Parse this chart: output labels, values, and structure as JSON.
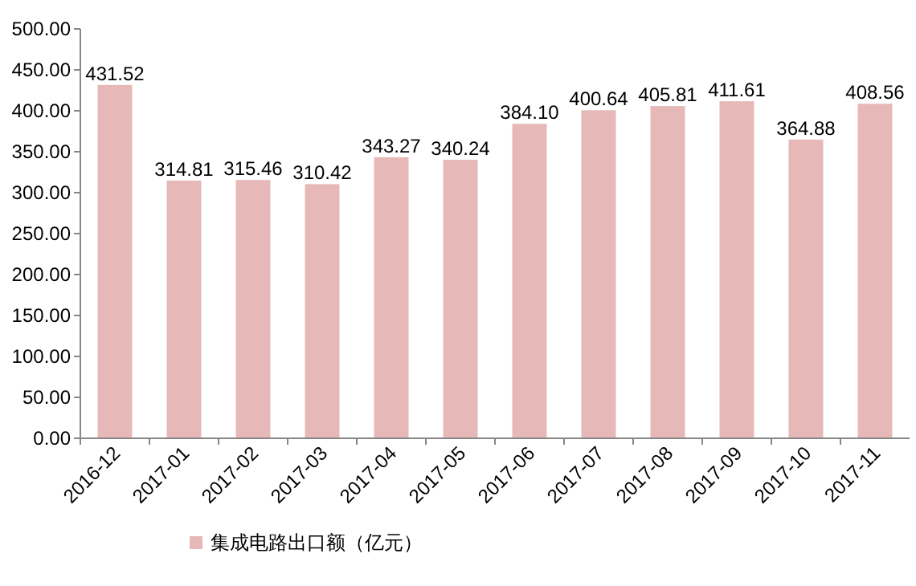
{
  "chart_data": {
    "type": "bar",
    "categories": [
      "2016-12",
      "2017-01",
      "2017-02",
      "2017-03",
      "2017-04",
      "2017-05",
      "2017-06",
      "2017-07",
      "2017-08",
      "2017-09",
      "2017-10",
      "2017-11"
    ],
    "series": [
      {
        "name": "集成电路出口额（亿元）",
        "color": "#e6b9b8",
        "values": [
          431.52,
          314.81,
          315.46,
          310.42,
          343.27,
          340.24,
          384.1,
          400.64,
          405.81,
          411.61,
          364.88,
          408.56
        ]
      }
    ],
    "value_labels": [
      "431.52",
      "314.81",
      "315.46",
      "310.42",
      "343.27",
      "340.24",
      "384.10",
      "400.64",
      "405.81",
      "411.61",
      "364.88",
      "408.56"
    ],
    "ylim": [
      0,
      500
    ],
    "yticks": [
      {
        "value": 0,
        "label": "0.00"
      },
      {
        "value": 50,
        "label": "50.00"
      },
      {
        "value": 100,
        "label": "100.00"
      },
      {
        "value": 150,
        "label": "150.00"
      },
      {
        "value": 200,
        "label": "200.00"
      },
      {
        "value": 250,
        "label": "250.00"
      },
      {
        "value": 300,
        "label": "300.00"
      },
      {
        "value": 350,
        "label": "350.00"
      },
      {
        "value": 400,
        "label": "400.00"
      },
      {
        "value": 450,
        "label": "450.00"
      },
      {
        "value": 500,
        "label": "500.00"
      }
    ],
    "legend": "bottom"
  }
}
